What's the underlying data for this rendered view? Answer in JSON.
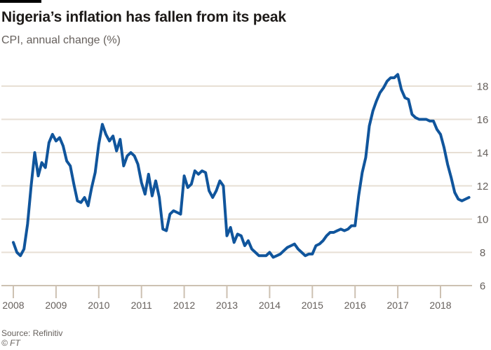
{
  "header": {
    "title": "Nigeria’s inflation has fallen from its peak",
    "subtitle": "CPI, annual change (%)"
  },
  "footer": {
    "source": "Source: Refinitiv",
    "copyright": "© FT"
  },
  "colors": {
    "background": "#ffffff",
    "accent_bar": "#000000",
    "title_text": "#1d1a18",
    "muted_text": "#66605c",
    "gridline": "#e7dfd4",
    "axis_and_ticks": "#cdc1b2",
    "line": "#10559c"
  },
  "chart_data": {
    "type": "line",
    "title": "Nigeria’s inflation has fallen from its peak",
    "subtitle": "CPI, annual change (%)",
    "x_tick_labels": [
      "2008",
      "2009",
      "2010",
      "2011",
      "2012",
      "2013",
      "2014",
      "2015",
      "2016",
      "2017",
      "2018"
    ],
    "y_ticks": [
      6,
      8,
      10,
      12,
      14,
      16,
      18
    ],
    "ylim": [
      6,
      19.4
    ],
    "y_axis_side": "right",
    "grid": "horizontal",
    "legend": "none",
    "series": [
      {
        "name": "CPI annual change (%)",
        "color": "#10559c",
        "frequency": "monthly",
        "start": "2008-01",
        "end": "2018-09",
        "values": [
          8.6,
          8.0,
          7.8,
          8.2,
          9.7,
          12.0,
          14.0,
          12.6,
          13.4,
          13.1,
          14.6,
          15.1,
          14.7,
          14.9,
          14.4,
          13.5,
          13.2,
          12.1,
          11.1,
          11.0,
          11.3,
          10.8,
          11.9,
          12.8,
          14.5,
          15.7,
          15.1,
          14.7,
          15.0,
          14.1,
          14.8,
          13.2,
          13.8,
          14.0,
          13.8,
          13.3,
          12.2,
          11.5,
          12.7,
          11.4,
          12.3,
          11.3,
          9.4,
          9.3,
          10.3,
          10.5,
          10.4,
          10.3,
          12.6,
          11.9,
          12.1,
          12.9,
          12.7,
          12.9,
          12.8,
          11.7,
          11.3,
          11.7,
          12.3,
          12.0,
          9.0,
          9.5,
          8.6,
          9.1,
          9.0,
          8.4,
          8.7,
          8.2,
          8.0,
          7.8,
          7.8,
          7.8,
          8.0,
          7.7,
          7.8,
          7.9,
          8.1,
          8.3,
          8.4,
          8.5,
          8.2,
          8.0,
          7.8,
          7.9,
          7.9,
          8.4,
          8.5,
          8.7,
          9.0,
          9.2,
          9.2,
          9.3,
          9.4,
          9.3,
          9.4,
          9.6,
          9.6,
          11.4,
          12.8,
          13.7,
          15.6,
          16.5,
          17.1,
          17.6,
          17.9,
          18.3,
          18.5,
          18.5,
          18.7,
          17.8,
          17.3,
          17.2,
          16.3,
          16.1,
          16.0,
          16.0,
          16.0,
          15.9,
          15.9,
          15.4,
          15.1,
          14.3,
          13.3,
          12.5,
          11.6,
          11.2,
          11.1,
          11.2,
          11.3
        ]
      }
    ]
  }
}
